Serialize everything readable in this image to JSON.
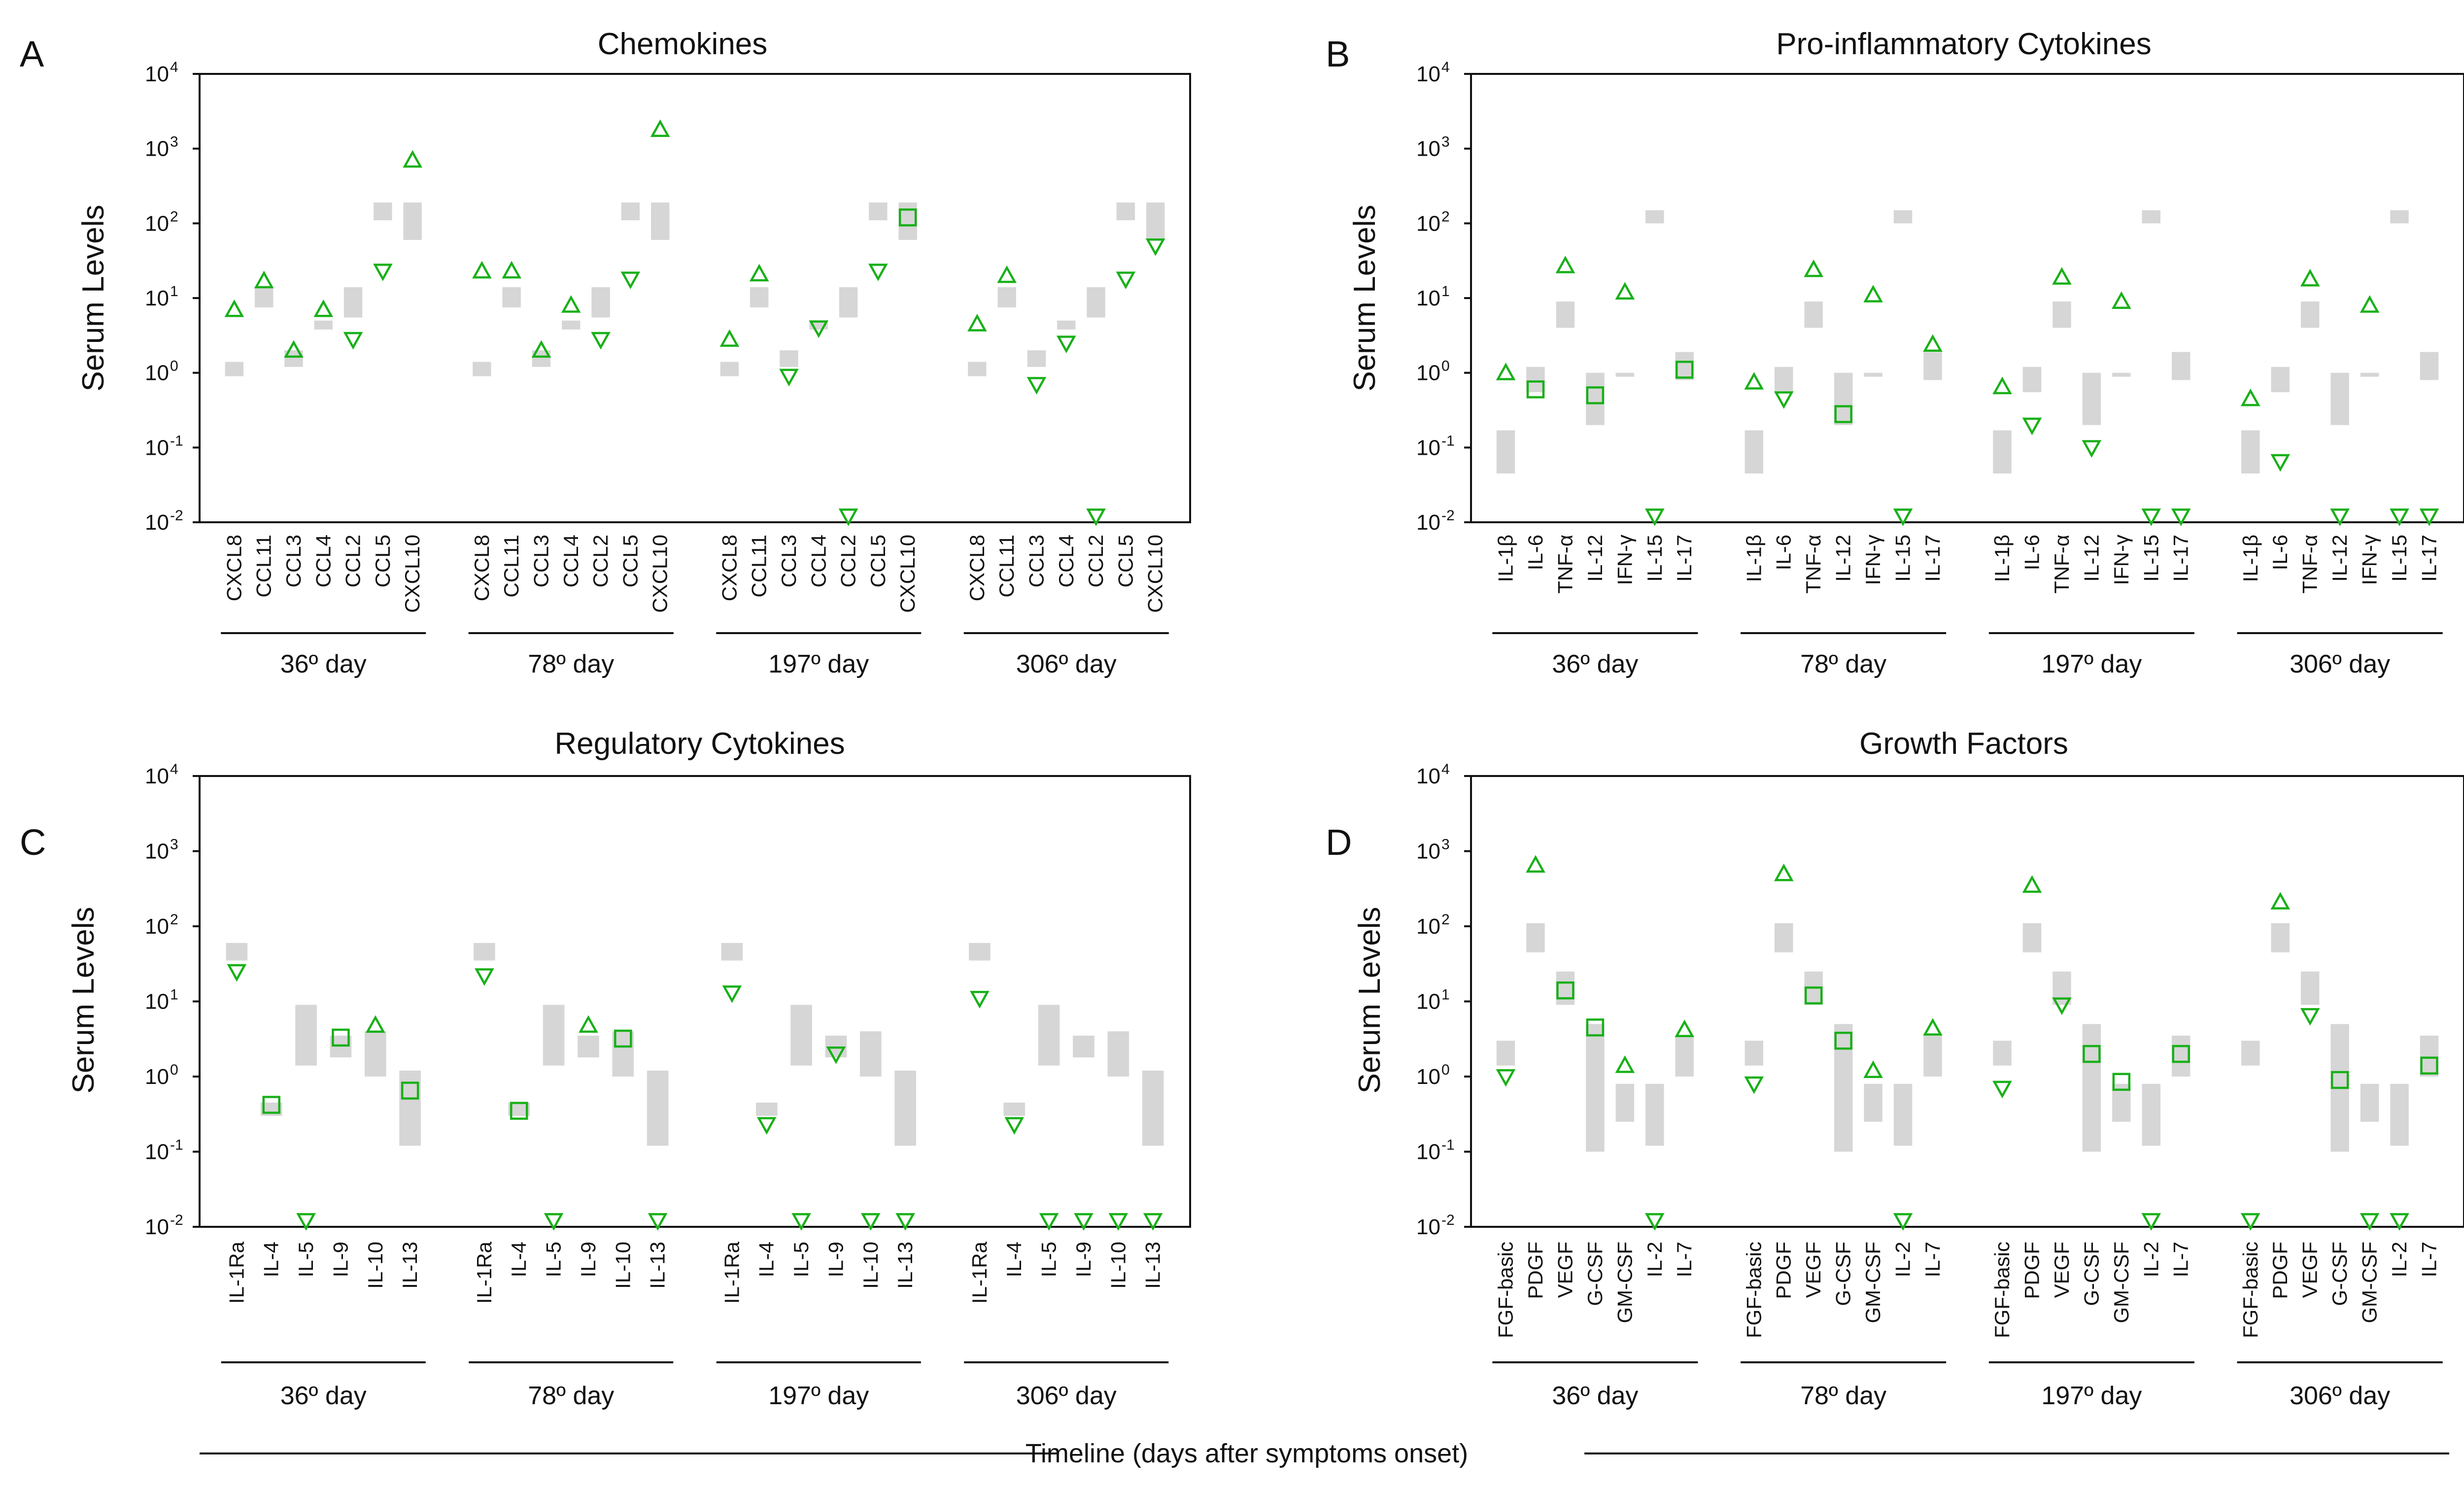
{
  "figure": {
    "footer": "Timeline (days after symptoms onset)",
    "timepoints": [
      "36º day",
      "78º day",
      "197º day",
      "306º day"
    ],
    "ylabel": "Serum Levels",
    "marker_color": "#18b018",
    "range_color": "#d6d6d6"
  },
  "chart_data": [
    {
      "type": "range-marker",
      "letter": "A",
      "title": "Chemokines",
      "ylabel": "Serum Levels",
      "yscale": "log",
      "ylim": [
        0.01,
        10000
      ],
      "yticks": [
        0.01,
        0.1,
        1,
        10,
        100,
        1000,
        10000
      ],
      "ytick_labels": [
        {
          "base": "10",
          "exp": "-2"
        },
        {
          "base": "10",
          "exp": "-1"
        },
        {
          "base": "10",
          "exp": "0"
        },
        {
          "base": "10",
          "exp": "1"
        },
        {
          "base": "10",
          "exp": "2"
        },
        {
          "base": "10",
          "exp": "3"
        },
        {
          "base": "10",
          "exp": "4"
        }
      ],
      "categories": [
        "CXCL8",
        "CCL11",
        "CCL3",
        "CCL4",
        "CCL2",
        "CCL5",
        "CXCL10"
      ],
      "reference_ranges": [
        [
          0.9,
          1.4
        ],
        [
          7.5,
          14
        ],
        [
          1.2,
          2
        ],
        [
          3.8,
          5
        ],
        [
          5.5,
          14
        ],
        [
          110,
          190
        ],
        [
          60,
          190
        ]
      ],
      "groups": [
        {
          "timepoint": "36º day",
          "values": [
            7,
            17,
            2,
            7,
            2.8,
            23,
            700
          ],
          "markers": [
            "up",
            "up",
            "up",
            "up",
            "down",
            "down",
            "up"
          ]
        },
        {
          "timepoint": "78º day",
          "values": [
            23,
            23,
            2,
            8,
            2.8,
            18,
            1800
          ],
          "markers": [
            "up",
            "up",
            "up",
            "up",
            "down",
            "down",
            "up"
          ]
        },
        {
          "timepoint": "197º day",
          "values": [
            2.8,
            21,
            0.9,
            4,
            0.01,
            23,
            120
          ],
          "markers": [
            "up",
            "up",
            "down",
            "down",
            "down",
            "down",
            "square"
          ]
        },
        {
          "timepoint": "306º day",
          "values": [
            4.5,
            20,
            0.7,
            2.5,
            0.01,
            18,
            50
          ],
          "markers": [
            "up",
            "up",
            "down",
            "down",
            "down",
            "down",
            "down"
          ]
        }
      ]
    },
    {
      "type": "range-marker",
      "letter": "B",
      "title": "Pro-inflammatory Cytokines",
      "ylabel": "Serum Levels",
      "yscale": "log",
      "ylim": [
        0.01,
        10000
      ],
      "yticks": [
        0.01,
        0.1,
        1,
        10,
        100,
        1000,
        10000
      ],
      "ytick_labels": [
        {
          "base": "10",
          "exp": "-2"
        },
        {
          "base": "10",
          "exp": "-1"
        },
        {
          "base": "10",
          "exp": "0"
        },
        {
          "base": "10",
          "exp": "1"
        },
        {
          "base": "10",
          "exp": "2"
        },
        {
          "base": "10",
          "exp": "3"
        },
        {
          "base": "10",
          "exp": "4"
        }
      ],
      "categories": [
        "IL-1β",
        "IL-6",
        "TNF-α",
        "IL-12",
        "IFN-γ",
        "IL-15",
        "IL-17"
      ],
      "reference_ranges": [
        [
          0.045,
          0.17
        ],
        [
          0.55,
          1.2
        ],
        [
          4,
          9
        ],
        [
          0.2,
          1
        ],
        [
          0.9,
          1
        ],
        [
          100,
          150
        ],
        [
          0.8,
          1.9
        ]
      ],
      "groups": [
        {
          "timepoint": "36º day",
          "values": [
            1,
            0.6,
            27,
            0.5,
            12,
            0.01,
            1.1
          ],
          "markers": [
            "up",
            "square",
            "up",
            "square",
            "up",
            "down",
            "square"
          ]
        },
        {
          "timepoint": "78º day",
          "values": [
            0.75,
            0.45,
            24,
            0.28,
            11,
            0.01,
            2.4
          ],
          "markers": [
            "up",
            "down",
            "up",
            "square",
            "up",
            "down",
            "up"
          ]
        },
        {
          "timepoint": "197º day",
          "values": [
            0.65,
            0.2,
            19,
            0.1,
            9,
            0.01,
            0.01
          ],
          "markers": [
            "up",
            "down",
            "up",
            "down",
            "up",
            "down",
            "down"
          ]
        },
        {
          "timepoint": "306º day",
          "values": [
            0.45,
            0.065,
            18,
            0.01,
            8,
            0.01,
            0.01
          ],
          "markers": [
            "up",
            "down",
            "up",
            "down",
            "up",
            "down",
            "down"
          ]
        }
      ]
    },
    {
      "type": "range-marker",
      "letter": "C",
      "title": "Regulatory Cytokines",
      "ylabel": "Serum Levels",
      "yscale": "log",
      "ylim": [
        0.01,
        10000
      ],
      "yticks": [
        0.01,
        0.1,
        1,
        10,
        100,
        1000,
        10000
      ],
      "ytick_labels": [
        {
          "base": "10",
          "exp": "-2"
        },
        {
          "base": "10",
          "exp": "-1"
        },
        {
          "base": "10",
          "exp": "0"
        },
        {
          "base": "10",
          "exp": "1"
        },
        {
          "base": "10",
          "exp": "2"
        },
        {
          "base": "10",
          "exp": "3"
        },
        {
          "base": "10",
          "exp": "4"
        }
      ],
      "categories": [
        "IL-1Ra",
        "IL-4",
        "IL-5",
        "IL-9",
        "IL-10",
        "IL-13"
      ],
      "reference_ranges": [
        [
          35,
          60
        ],
        [
          0.3,
          0.45
        ],
        [
          1.4,
          9
        ],
        [
          1.8,
          3.5
        ],
        [
          1,
          4
        ],
        [
          0.12,
          1.2
        ]
      ],
      "groups": [
        {
          "timepoint": "36º day",
          "values": [
            25,
            0.42,
            0.01,
            3.3,
            4.8,
            0.65
          ],
          "markers": [
            "down",
            "square",
            "down",
            "square",
            "up",
            "square"
          ]
        },
        {
          "timepoint": "78º day",
          "values": [
            22,
            0.35,
            0.01,
            4.8,
            3.2,
            0.01
          ],
          "markers": [
            "down",
            "square",
            "down",
            "up",
            "square",
            "down"
          ]
        },
        {
          "timepoint": "197º day",
          "values": [
            13,
            0.23,
            0.01,
            2,
            0.01,
            0.01
          ],
          "markers": [
            "down",
            "down",
            "down",
            "down",
            "down",
            "down"
          ]
        },
        {
          "timepoint": "306º day",
          "values": [
            11,
            0.23,
            0.01,
            0.01,
            0.01,
            0.01
          ],
          "markers": [
            "down",
            "down",
            "down",
            "down",
            "down",
            "down"
          ]
        }
      ]
    },
    {
      "type": "range-marker",
      "letter": "D",
      "title": "Growth Factors",
      "ylabel": "Serum Levels",
      "yscale": "log",
      "ylim": [
        0.01,
        10000
      ],
      "yticks": [
        0.01,
        0.1,
        1,
        10,
        100,
        1000,
        10000
      ],
      "ytick_labels": [
        {
          "base": "10",
          "exp": "-2"
        },
        {
          "base": "10",
          "exp": "-1"
        },
        {
          "base": "10",
          "exp": "0"
        },
        {
          "base": "10",
          "exp": "1"
        },
        {
          "base": "10",
          "exp": "2"
        },
        {
          "base": "10",
          "exp": "3"
        },
        {
          "base": "10",
          "exp": "4"
        }
      ],
      "categories": [
        "FGF-basic",
        "PDGF",
        "VEGF",
        "G-CSF",
        "GM-CSF",
        "IL-2",
        "IL-7"
      ],
      "reference_ranges": [
        [
          1.4,
          3
        ],
        [
          45,
          110
        ],
        [
          9,
          25
        ],
        [
          0.1,
          5
        ],
        [
          0.25,
          0.8
        ],
        [
          0.12,
          0.8
        ],
        [
          1,
          3.5
        ]
      ],
      "groups": [
        {
          "timepoint": "36º day",
          "values": [
            1,
            650,
            14,
            4.5,
            1.4,
            0.01,
            4.2
          ],
          "markers": [
            "down",
            "up",
            "square",
            "square",
            "up",
            "down",
            "up"
          ]
        },
        {
          "timepoint": "78º day",
          "values": [
            0.8,
            500,
            12,
            3,
            1.2,
            0.01,
            4.4
          ],
          "markers": [
            "down",
            "up",
            "square",
            "square",
            "up",
            "down",
            "up"
          ]
        },
        {
          "timepoint": "197º day",
          "values": [
            0.7,
            350,
            9,
            2,
            0.85,
            0.01,
            2
          ],
          "markers": [
            "down",
            "up",
            "down",
            "square",
            "square",
            "down",
            "square"
          ]
        },
        {
          "timepoint": "306º day",
          "values": [
            0.01,
            210,
            6.5,
            0.9,
            0.01,
            0.01,
            1.4
          ],
          "markers": [
            "down",
            "up",
            "down",
            "square",
            "down",
            "down",
            "square"
          ]
        }
      ]
    }
  ]
}
